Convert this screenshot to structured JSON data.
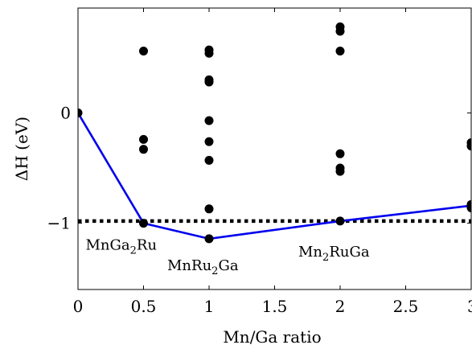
{
  "chart_data": {
    "type": "scatter",
    "xlabel": "Mn/Ga ratio",
    "ylabel": "ΔH (eV)",
    "xlim": [
      0,
      3
    ],
    "ylim": [
      -1.6,
      0.95
    ],
    "x_ticks": [
      {
        "value": 0,
        "label": "0"
      },
      {
        "value": 0.5,
        "label": "0.5"
      },
      {
        "value": 1,
        "label": "1"
      },
      {
        "value": 1.5,
        "label": "1.5"
      },
      {
        "value": 2,
        "label": "2"
      },
      {
        "value": 2.5,
        "label": "2.5"
      },
      {
        "value": 3,
        "label": "3"
      }
    ],
    "y_ticks": [
      {
        "value": 0,
        "label": "0"
      },
      {
        "value": -1,
        "label": "−1"
      }
    ],
    "points": [
      {
        "x": 0,
        "y": 0
      },
      {
        "x": 0.5,
        "y": 0.56
      },
      {
        "x": 0.5,
        "y": -0.24
      },
      {
        "x": 0.5,
        "y": -0.33
      },
      {
        "x": 0.5,
        "y": -1.0
      },
      {
        "x": 1,
        "y": 0.57
      },
      {
        "x": 1,
        "y": 0.54
      },
      {
        "x": 1,
        "y": 0.3
      },
      {
        "x": 1,
        "y": 0.28
      },
      {
        "x": 1,
        "y": -0.07
      },
      {
        "x": 1,
        "y": -0.26
      },
      {
        "x": 1,
        "y": -0.43
      },
      {
        "x": 1,
        "y": -0.87
      },
      {
        "x": 1,
        "y": -1.14
      },
      {
        "x": 2,
        "y": 0.78
      },
      {
        "x": 2,
        "y": 0.74
      },
      {
        "x": 2,
        "y": 0.56
      },
      {
        "x": 2,
        "y": -0.37
      },
      {
        "x": 2,
        "y": -0.5
      },
      {
        "x": 2,
        "y": -0.53
      },
      {
        "x": 2,
        "y": -0.98
      },
      {
        "x": 3,
        "y": -0.27
      },
      {
        "x": 3,
        "y": -0.3
      },
      {
        "x": 3,
        "y": -0.83
      },
      {
        "x": 3,
        "y": -0.86
      }
    ],
    "hull_line": {
      "color": "#0000ee",
      "points": [
        {
          "x": 0,
          "y": 0
        },
        {
          "x": 0.5,
          "y": -1.0
        },
        {
          "x": 1,
          "y": -1.14
        },
        {
          "x": 2,
          "y": -0.98
        },
        {
          "x": 3,
          "y": -0.84
        }
      ]
    },
    "reference_line": {
      "y": -0.98,
      "style": "dotted",
      "color": "#000000"
    },
    "annotations": [
      {
        "text": "MnGa",
        "sub": "2",
        "after": "Ru",
        "x": 0.5,
        "y": -1.0,
        "placement": "below-left"
      },
      {
        "text": "MnRu",
        "sub": "2",
        "after": "Ga",
        "x": 1,
        "y": -1.14,
        "placement": "below"
      },
      {
        "text": "Mn",
        "sub": "2",
        "after": "RuGa",
        "x": 2,
        "y": -0.98,
        "placement": "below"
      }
    ],
    "marker_color": "#000000",
    "grid": false
  }
}
